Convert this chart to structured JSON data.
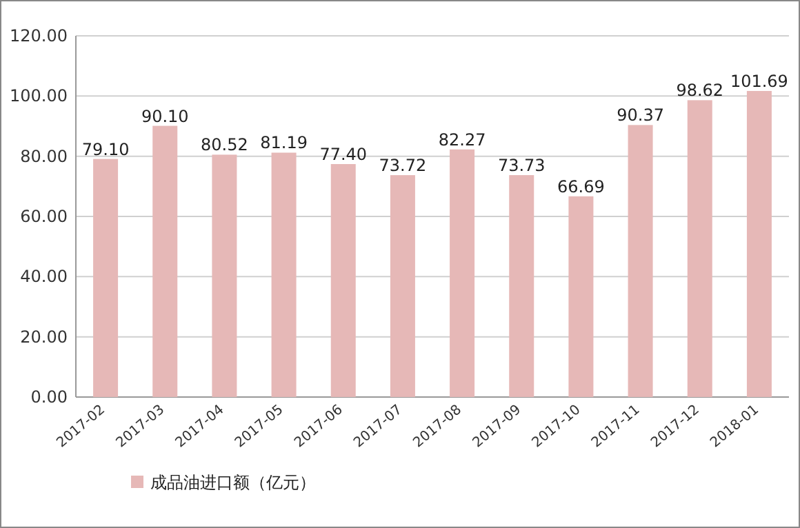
{
  "chart_data": {
    "type": "bar",
    "categories": [
      "2017-02",
      "2017-03",
      "2017-04",
      "2017-05",
      "2017-06",
      "2017-07",
      "2017-08",
      "2017-09",
      "2017-10",
      "2017-11",
      "2017-12",
      "2018-01"
    ],
    "series": [
      {
        "name": "成品油进口额（亿元）",
        "color": "#e6b8b7",
        "values": [
          79.1,
          90.1,
          80.52,
          81.19,
          77.4,
          73.72,
          82.27,
          73.73,
          66.69,
          90.37,
          98.62,
          101.69
        ],
        "value_labels": [
          "79.10",
          "90.10",
          "80.52",
          "81.19",
          "77.40",
          "73.72",
          "82.27",
          "73.73",
          "66.69",
          "90.37",
          "98.62",
          "101.69"
        ]
      }
    ],
    "ylim": [
      0,
      120
    ],
    "yticks": [
      {
        "value": 0,
        "label": "0.00"
      },
      {
        "value": 20,
        "label": "20.00"
      },
      {
        "value": 40,
        "label": "40.00"
      },
      {
        "value": 60,
        "label": "60.00"
      },
      {
        "value": 80,
        "label": "80.00"
      },
      {
        "value": 100,
        "label": "100.00"
      },
      {
        "value": 120,
        "label": "120.00"
      }
    ],
    "grid": "y",
    "legend": "bottom left"
  }
}
